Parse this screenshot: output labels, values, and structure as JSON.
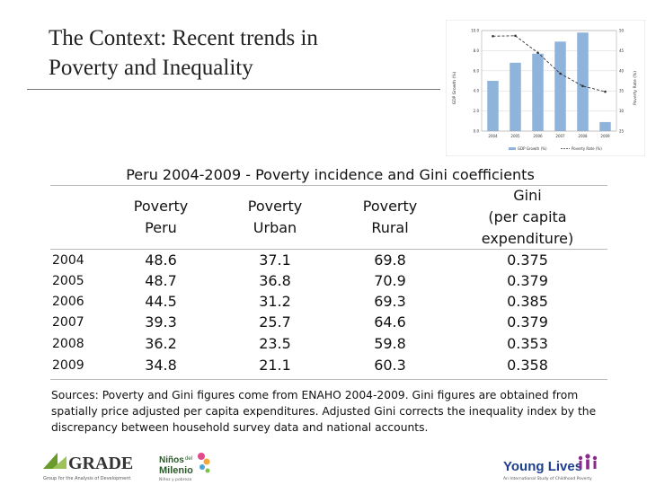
{
  "slide_title": {
    "line1": "The Context: Recent trends in",
    "line2": "Poverty and Inequality"
  },
  "mini_chart": {
    "y_left_label": "GDP Growth (%)",
    "y_right_label": "Poverty Rate (%)",
    "y_left_ticks": [
      "10.0",
      "8.0",
      "6.0",
      "4.0",
      "2.0",
      "0.0"
    ],
    "y_right_ticks": [
      "50",
      "45",
      "40",
      "35",
      "30",
      "25"
    ],
    "x_ticks": [
      "2004",
      "2005",
      "2006",
      "2007",
      "2008",
      "2009"
    ],
    "legend_bar": "GDP Growth (%)",
    "legend_line": "Poverty Rate (%)",
    "bar_color": "#8fb4dc",
    "line_color": "#333333"
  },
  "table": {
    "title": "Peru 2004-2009 - Poverty incidence and Gini coefficients",
    "headers": [
      {
        "lines": [
          "Poverty",
          "Peru"
        ]
      },
      {
        "lines": [
          "Poverty",
          "Urban"
        ]
      },
      {
        "lines": [
          "Poverty",
          "Rural"
        ]
      },
      {
        "lines": [
          "Gini",
          "(per capita",
          "expenditure)"
        ]
      }
    ],
    "rows": [
      {
        "year": "2004",
        "peru": "48.6",
        "urban": "37.1",
        "rural": "69.8",
        "gini": "0.375"
      },
      {
        "year": "2005",
        "peru": "48.7",
        "urban": "36.8",
        "rural": "70.9",
        "gini": "0.379"
      },
      {
        "year": "2006",
        "peru": "44.5",
        "urban": "31.2",
        "rural": "69.3",
        "gini": "0.385"
      },
      {
        "year": "2007",
        "peru": "39.3",
        "urban": "25.7",
        "rural": "64.6",
        "gini": "0.379"
      },
      {
        "year": "2008",
        "peru": "36.2",
        "urban": "23.5",
        "rural": "59.8",
        "gini": "0.353"
      },
      {
        "year": "2009",
        "peru": "34.8",
        "urban": "21.1",
        "rural": "60.3",
        "gini": "0.358"
      }
    ]
  },
  "sources": "Sources: Poverty and Gini figures come from ENAHO 2004-2009. Gini figures are obtained from spatially price adjusted per capita expenditures. Adjusted Gini corrects the inequality index by the discrepancy between household survey data and national accounts.",
  "logos": {
    "grade_name": "GRADE",
    "grade_tagline": "Group for the Analysis of Development",
    "ninos_line1": "Niños",
    "ninos_del": "del",
    "ninos_line2": "Milenio",
    "ninos_tagline": "Niñez y pobreza",
    "young_lives": "Young Lives",
    "young_lives_tagline": "An International Study of Childhood Poverty",
    "grade_color": "#6a9a2c",
    "young_lives_color": "#1e3f8f",
    "young_lives_accent": "#8a2a8a"
  }
}
